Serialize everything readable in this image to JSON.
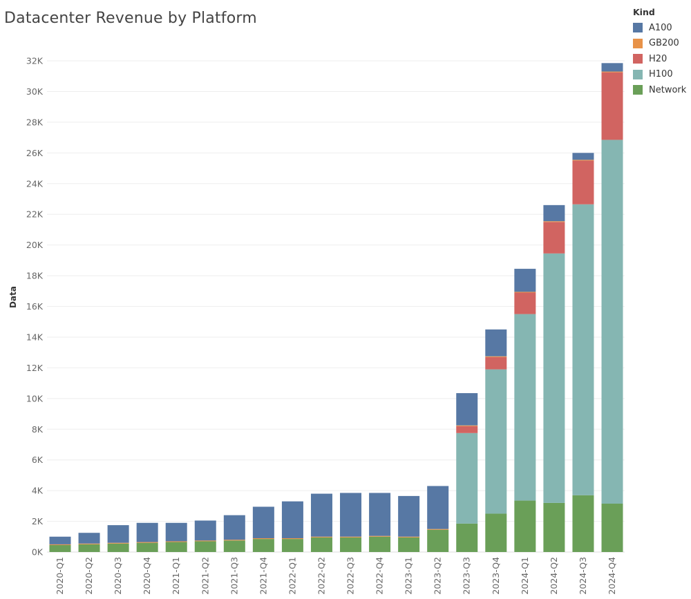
{
  "chart_data": {
    "type": "bar",
    "stacked": true,
    "title": "Datacenter Revenue by Platform",
    "xlabel": "",
    "ylabel": "Data",
    "ylim": [
      0,
      32500
    ],
    "yticks": [
      0,
      2000,
      4000,
      6000,
      8000,
      10000,
      12000,
      14000,
      16000,
      18000,
      20000,
      22000,
      24000,
      26000,
      28000,
      30000,
      32000
    ],
    "ytick_labels": [
      "0K",
      "2K",
      "4K",
      "6K",
      "8K",
      "10K",
      "12K",
      "14K",
      "16K",
      "18K",
      "20K",
      "22K",
      "24K",
      "26K",
      "28K",
      "30K",
      "32K"
    ],
    "categories": [
      "2020-Q1",
      "2020-Q2",
      "2020-Q3",
      "2020-Q4",
      "2021-Q1",
      "2021-Q2",
      "2021-Q3",
      "2021-Q4",
      "2022-Q1",
      "2022-Q2",
      "2022-Q3",
      "2022-Q4",
      "2023-Q1",
      "2023-Q2",
      "2023-Q3",
      "2023-Q4",
      "2024-Q1",
      "2024-Q2",
      "2024-Q3",
      "2024-Q4"
    ],
    "legend_title": "Kind",
    "legend_position": "top-right",
    "series": [
      {
        "name": "Network",
        "color": "#6a9f58",
        "values": [
          450,
          500,
          550,
          600,
          650,
          700,
          750,
          850,
          850,
          950,
          950,
          1000,
          950,
          1450,
          1850,
          2500,
          3350,
          3200,
          3700,
          3150
        ]
      },
      {
        "name": "H100",
        "color": "#85b6b2",
        "values": [
          0,
          0,
          0,
          0,
          0,
          0,
          0,
          0,
          0,
          0,
          0,
          0,
          0,
          0,
          5900,
          9400,
          12150,
          16250,
          18950,
          23700
        ]
      },
      {
        "name": "H20",
        "color": "#d16461",
        "values": [
          0,
          0,
          0,
          0,
          0,
          0,
          0,
          0,
          0,
          0,
          0,
          0,
          0,
          0,
          450,
          800,
          1400,
          2050,
          2850,
          4400
        ]
      },
      {
        "name": "GB200",
        "color": "#e89248",
        "values": [
          50,
          50,
          50,
          50,
          50,
          50,
          50,
          50,
          50,
          50,
          50,
          50,
          50,
          50,
          50,
          50,
          50,
          50,
          50,
          50
        ]
      },
      {
        "name": "A100",
        "color": "#5778a4",
        "values": [
          500,
          700,
          1150,
          1250,
          1200,
          1300,
          1600,
          2050,
          2400,
          2800,
          2850,
          2800,
          2650,
          2800,
          2100,
          1750,
          1500,
          1050,
          450,
          550
        ]
      }
    ],
    "legend_order": [
      "A100",
      "GB200",
      "H20",
      "H100",
      "Network"
    ],
    "grid": true
  }
}
